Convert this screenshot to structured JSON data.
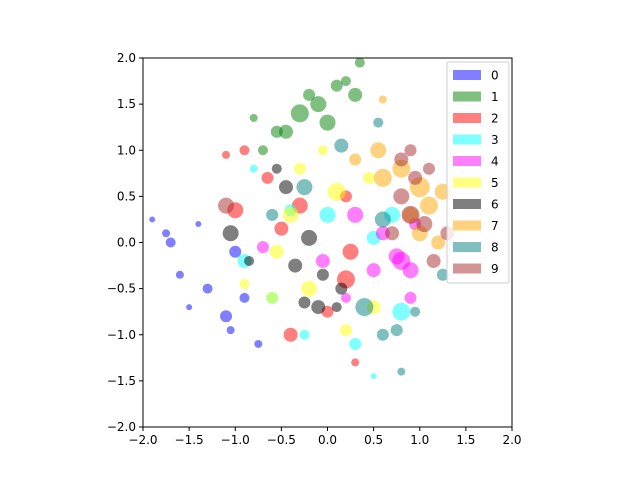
{
  "chart_data": {
    "type": "scatter",
    "alpha": 0.5,
    "legend": "upper right",
    "grid": false,
    "xlim": [
      -2,
      2
    ],
    "ylim": [
      -2,
      2
    ],
    "xticks": [
      {
        "value": -2,
        "label": "−2.0"
      },
      {
        "value": -1.5,
        "label": "−1.5"
      },
      {
        "value": -1,
        "label": "−1.0"
      },
      {
        "value": -0.5,
        "label": "−0.5"
      },
      {
        "value": 0,
        "label": "0.0"
      },
      {
        "value": 0.5,
        "label": "0.5"
      },
      {
        "value": 1,
        "label": "1.0"
      },
      {
        "value": 1.5,
        "label": "1.5"
      },
      {
        "value": 2,
        "label": "2.0"
      }
    ],
    "yticks": [
      {
        "value": -2,
        "label": "−2.0"
      },
      {
        "value": -1.5,
        "label": "−1.5"
      },
      {
        "value": -1,
        "label": "−1.0"
      },
      {
        "value": -0.5,
        "label": "−0.5"
      },
      {
        "value": 0,
        "label": "0.0"
      },
      {
        "value": 0.5,
        "label": "0.5"
      },
      {
        "value": 1,
        "label": "1.0"
      },
      {
        "value": 1.5,
        "label": "1.5"
      },
      {
        "value": 2,
        "label": "2.0"
      }
    ],
    "series": [
      {
        "name": "0",
        "color": "#0000ff",
        "x": [
          -1.9,
          -1.75,
          -1.7,
          -1.6,
          -1.5,
          -1.3,
          -1.1,
          -1.05,
          -0.9,
          -1.0,
          -0.75,
          -1.4
        ],
        "y": [
          0.25,
          0.1,
          0,
          -0.35,
          -0.7,
          -0.5,
          -0.8,
          -0.95,
          -0.6,
          -0.1,
          -1.1,
          0.2
        ],
        "sizes": [
          3,
          4,
          5,
          4,
          3,
          5,
          6,
          4,
          5,
          6,
          4,
          3
        ]
      },
      {
        "name": "1",
        "color": "#008000",
        "x": [
          -0.1,
          0.1,
          0.2,
          0.35,
          -0.3,
          -0.45,
          -0.55,
          -0.8,
          0.0,
          -0.2,
          -0.7,
          0.3
        ],
        "y": [
          1.5,
          1.7,
          1.75,
          1.95,
          1.4,
          1.2,
          1.2,
          1.35,
          1.3,
          1.6,
          1.0,
          1.6
        ],
        "sizes": [
          8,
          6,
          5,
          5,
          9,
          7,
          6,
          4,
          8,
          6,
          5,
          7
        ]
      },
      {
        "name": "2",
        "color": "#ff0000",
        "x": [
          -0.9,
          -1.1,
          -0.65,
          -1.0,
          -0.5,
          0.2,
          0.25,
          0.0,
          -0.4,
          0.2,
          -0.3,
          0.3
        ],
        "y": [
          1.0,
          0.95,
          0.7,
          0.35,
          0.15,
          -0.4,
          -0.1,
          -0.75,
          -1.0,
          0.5,
          0.4,
          -1.3
        ],
        "sizes": [
          5,
          4,
          6,
          8,
          7,
          9,
          8,
          6,
          7,
          6,
          8,
          4
        ]
      },
      {
        "name": "3",
        "color": "#00ffff",
        "x": [
          -0.6,
          -0.9,
          -0.8,
          0.0,
          0.5,
          0.8,
          0.3,
          0.5,
          -0.4,
          0.7,
          -0.25
        ],
        "y": [
          -0.6,
          -0.2,
          0.8,
          0.3,
          0.05,
          -0.75,
          -1.1,
          -1.45,
          0.35,
          0.3,
          -1.0
        ],
        "sizes": [
          6,
          7,
          4,
          8,
          7,
          9,
          6,
          3,
          6,
          8,
          5
        ]
      },
      {
        "name": "4",
        "color": "#ff00ff",
        "x": [
          0.3,
          0.6,
          0.8,
          0.9,
          0.9,
          0.5,
          -0.7,
          -0.05,
          0.75,
          0.95,
          0.2
        ],
        "y": [
          0.3,
          0.1,
          -0.2,
          -0.3,
          -0.6,
          -0.3,
          -0.05,
          -0.2,
          -0.15,
          0.2,
          -0.6
        ],
        "sizes": [
          8,
          7,
          9,
          8,
          6,
          7,
          6,
          7,
          8,
          6,
          5
        ]
      },
      {
        "name": "5",
        "color": "#ffff00",
        "x": [
          -0.3,
          -0.4,
          -0.55,
          -0.2,
          0.1,
          0.45,
          -0.05,
          -0.6,
          -0.9,
          0.5,
          0.2
        ],
        "y": [
          0.8,
          0.3,
          -0.1,
          -0.5,
          0.55,
          0.7,
          1.0,
          -0.6,
          -0.45,
          -0.7,
          -0.95
        ],
        "sizes": [
          6,
          8,
          7,
          8,
          9,
          6,
          5,
          6,
          5,
          7,
          6
        ]
      },
      {
        "name": "6",
        "color": "#000000",
        "x": [
          -0.45,
          -0.2,
          -0.35,
          -0.05,
          -0.25,
          -0.1,
          0.1,
          -1.05,
          -0.55,
          0.15,
          -0.85
        ],
        "y": [
          0.6,
          0.05,
          -0.25,
          -0.35,
          -0.65,
          -0.7,
          -0.7,
          0.1,
          0.8,
          -0.5,
          -0.2
        ],
        "sizes": [
          7,
          8,
          7,
          6,
          6,
          7,
          5,
          8,
          5,
          6,
          5
        ]
      },
      {
        "name": "7",
        "color": "#ffa500",
        "x": [
          0.55,
          0.6,
          1.0,
          1.1,
          0.9,
          1.25,
          1.2,
          0.8,
          1.0,
          0.6,
          0.3
        ],
        "y": [
          1.0,
          0.7,
          0.6,
          0.4,
          0.3,
          0.55,
          0.0,
          0.8,
          0.1,
          1.55,
          0.9
        ],
        "sizes": [
          8,
          9,
          10,
          9,
          8,
          8,
          7,
          9,
          8,
          4,
          6
        ]
      },
      {
        "name": "8",
        "color": "#008080",
        "x": [
          0.15,
          0.55,
          0.6,
          0.4,
          0.75,
          0.95,
          0.6,
          1.25,
          0.8,
          -0.6,
          -0.25
        ],
        "y": [
          1.05,
          1.3,
          0.25,
          -0.7,
          -0.95,
          -0.75,
          -1.0,
          -0.35,
          -1.4,
          0.3,
          0.6
        ],
        "sizes": [
          7,
          5,
          8,
          9,
          6,
          5,
          6,
          6,
          4,
          6,
          8
        ]
      },
      {
        "name": "9",
        "color": "#a52a2a",
        "x": [
          0.9,
          0.8,
          0.95,
          0.8,
          1.1,
          1.05,
          1.3,
          0.7,
          1.15,
          0.9,
          -1.1
        ],
        "y": [
          1.0,
          0.9,
          0.7,
          0.5,
          0.8,
          0.2,
          0.1,
          0.1,
          -0.2,
          0.3,
          0.4
        ],
        "sizes": [
          6,
          7,
          7,
          8,
          6,
          8,
          7,
          7,
          7,
          9,
          8
        ]
      }
    ]
  }
}
